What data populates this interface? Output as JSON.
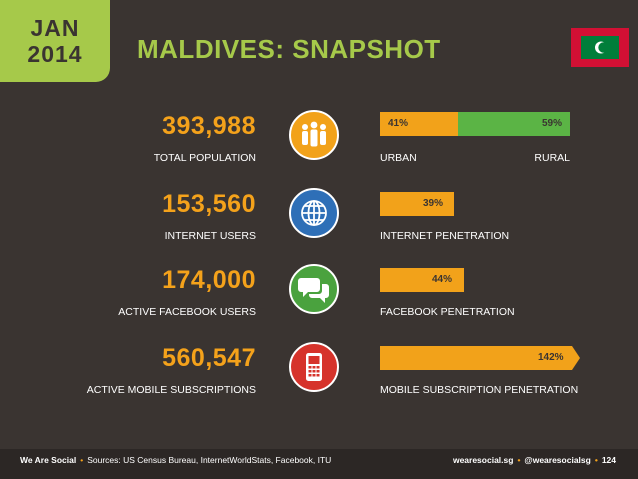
{
  "header": {
    "month": "JAN",
    "year": "2014",
    "title": "MALDIVES: SNAPSHOT"
  },
  "colors": {
    "accent_green": "#a6c94a",
    "accent_orange": "#f4a21b",
    "background": "#3a3431",
    "urban_bar": "#f2a21a",
    "rural_bar": "#5bb445",
    "internet_icon": "#2e6fb7",
    "facebook_icon": "#4aa23e",
    "mobile_icon": "#d6332b"
  },
  "stats": [
    {
      "value": "393,988",
      "label": "TOTAL POPULATION",
      "icon": "people-icon",
      "bar": {
        "type": "split",
        "left_pct": "41%",
        "right_pct": "59%",
        "left_fraction": 0.41,
        "left_label": "URBAN",
        "right_label": "RURAL"
      }
    },
    {
      "value": "153,560",
      "label": "INTERNET USERS",
      "icon": "globe-icon",
      "bar": {
        "type": "single",
        "pct": "39%",
        "fraction": 0.39,
        "label": "INTERNET PENETRATION"
      }
    },
    {
      "value": "174,000",
      "label": "ACTIVE FACEBOOK USERS",
      "icon": "speech-bubbles-icon",
      "bar": {
        "type": "single",
        "pct": "44%",
        "fraction": 0.44,
        "label": "FACEBOOK PENETRATION"
      }
    },
    {
      "value": "560,547",
      "label": "ACTIVE MOBILE SUBSCRIPTIONS",
      "icon": "mobile-phone-icon",
      "bar": {
        "type": "single",
        "pct": "142%",
        "fraction": 1.42,
        "label": "MOBILE SUBSCRIPTION PENETRATION"
      }
    }
  ],
  "footer": {
    "brand": "We Are Social",
    "sources": "Sources: US Census Bureau, InternetWorldStats, Facebook, ITU",
    "website": "wearesocial.sg",
    "handle": "@wearesocialsg",
    "page": "124"
  }
}
